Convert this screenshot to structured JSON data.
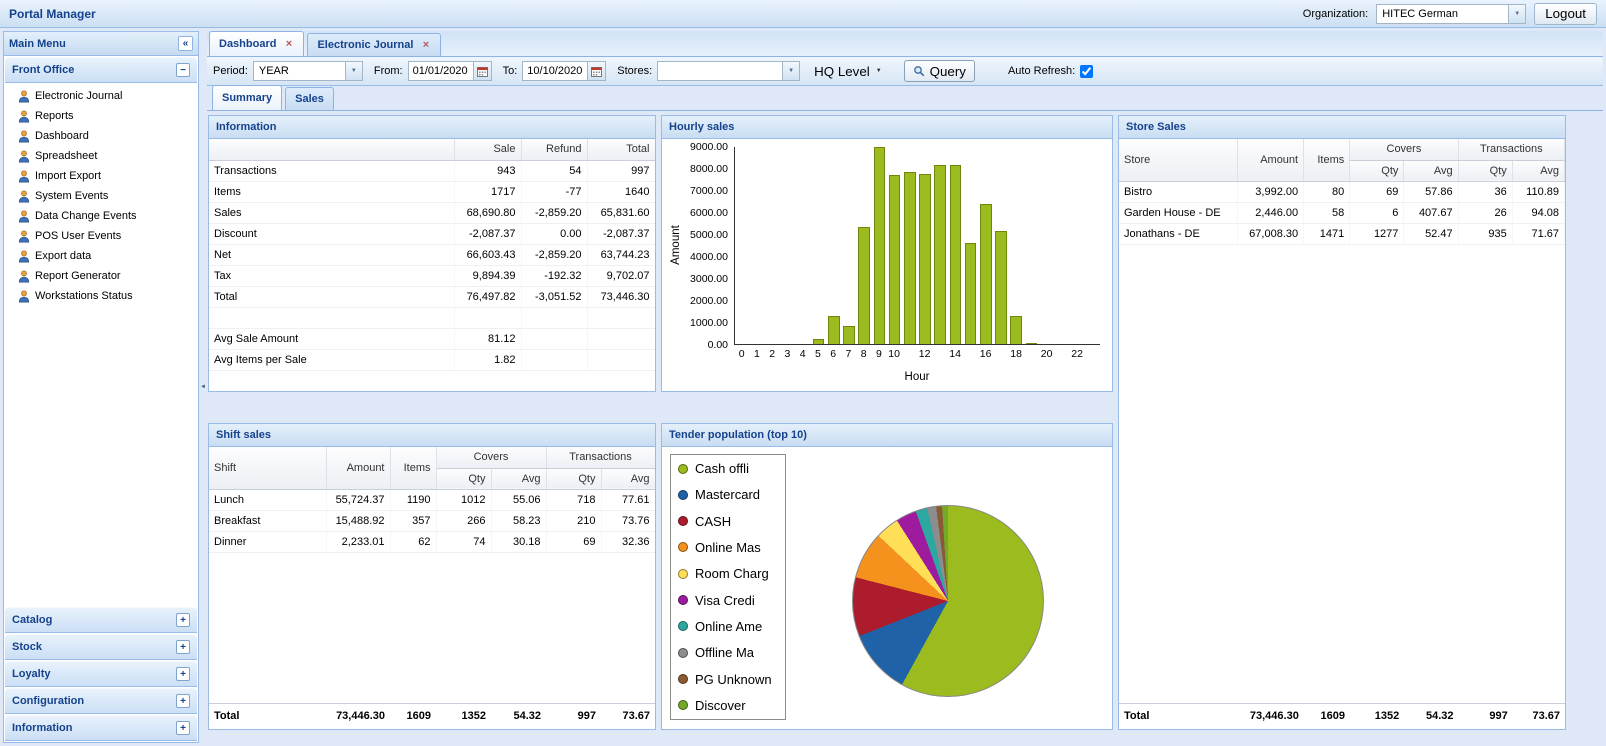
{
  "topbar": {
    "title": "Portal Manager",
    "organization_label": "Organization:",
    "organization_value": "HITEC German",
    "logout_label": "Logout"
  },
  "sidebar": {
    "header": "Main Menu",
    "front_office": {
      "label": "Front Office",
      "items": [
        "Electronic Journal",
        "Reports",
        "Dashboard",
        "Spreadsheet",
        "Import Export",
        "System Events",
        "Data Change Events",
        "POS User Events",
        "Export data",
        "Report Generator",
        "Workstations Status"
      ]
    },
    "collapsed_sections": [
      "Catalog",
      "Stock",
      "Loyalty",
      "Configuration",
      "Information"
    ]
  },
  "tabs": {
    "items": [
      {
        "label": "Dashboard",
        "active": true
      },
      {
        "label": "Electronic Journal",
        "active": false
      }
    ]
  },
  "toolbar": {
    "period_label": "Period:",
    "period_value": "YEAR",
    "from_label": "From:",
    "from_value": "01/01/2020",
    "to_label": "To:",
    "to_value": "10/10/2020",
    "stores_label": "Stores:",
    "stores_value": "",
    "hq_level_label": "HQ Level",
    "query_label": "Query",
    "auto_refresh_label": "Auto Refresh:",
    "auto_refresh_checked": true
  },
  "subtabs": {
    "items": [
      {
        "label": "Summary",
        "active": true
      },
      {
        "label": "Sales",
        "active": false
      }
    ]
  },
  "panels": {
    "information": {
      "title": "Information",
      "grid": {
        "columns": [
          "",
          "Sale",
          "Refund",
          "Total"
        ],
        "rows": [
          [
            "Transactions",
            "943",
            "54",
            "997"
          ],
          [
            "Items",
            "1717",
            "-77",
            "1640"
          ],
          [
            "Sales",
            "68,690.80",
            "-2,859.20",
            "65,831.60"
          ],
          [
            "Discount",
            "-2,087.37",
            "0.00",
            "-2,087.37"
          ],
          [
            "Net",
            "66,603.43",
            "-2,859.20",
            "63,744.23"
          ],
          [
            "Tax",
            "9,894.39",
            "-192.32",
            "9,702.07"
          ],
          [
            "Total",
            "76,497.82",
            "-3,051.52",
            "73,446.30"
          ],
          [
            "",
            "",
            "",
            ""
          ],
          [
            "Avg Sale Amount",
            "81.12",
            "",
            ""
          ],
          [
            "Avg Items per Sale",
            "1.82",
            "",
            ""
          ]
        ]
      }
    },
    "hourly_sales": {
      "title": "Hourly sales"
    },
    "store_sales": {
      "title": "Store Sales",
      "grid": {
        "header_main": [
          {
            "label": "Store",
            "rowspan": 2
          },
          {
            "label": "Amount",
            "rowspan": 2
          },
          {
            "label": "Items",
            "rowspan": 2
          },
          {
            "label": "Covers",
            "colspan": 2
          },
          {
            "label": "Transactions",
            "colspan": 2
          }
        ],
        "header_sub": [
          "Qty",
          "Avg",
          "Qty",
          "Avg"
        ],
        "rows": [
          [
            "Bistro",
            "3,992.00",
            "80",
            "69",
            "57.86",
            "36",
            "110.89"
          ],
          [
            "Garden House - DE",
            "2,446.00",
            "58",
            "6",
            "407.67",
            "26",
            "94.08"
          ],
          [
            "Jonathans - DE",
            "67,008.30",
            "1471",
            "1277",
            "52.47",
            "935",
            "71.67"
          ]
        ],
        "total": [
          "Total",
          "73,446.30",
          "1609",
          "1352",
          "54.32",
          "997",
          "73.67"
        ]
      }
    },
    "shift_sales": {
      "title": "Shift sales",
      "grid": {
        "header_main": [
          {
            "label": "Shift",
            "rowspan": 2
          },
          {
            "label": "Amount",
            "rowspan": 2
          },
          {
            "label": "Items",
            "rowspan": 2
          },
          {
            "label": "Covers",
            "colspan": 2
          },
          {
            "label": "Transactions",
            "colspan": 2
          }
        ],
        "header_sub": [
          "Qty",
          "Avg",
          "Qty",
          "Avg"
        ],
        "rows": [
          [
            "Lunch",
            "55,724.37",
            "1190",
            "1012",
            "55.06",
            "718",
            "77.61"
          ],
          [
            "Breakfast",
            "15,488.92",
            "357",
            "266",
            "58.23",
            "210",
            "73.76"
          ],
          [
            "Dinner",
            "2,233.01",
            "62",
            "74",
            "30.18",
            "69",
            "32.36"
          ]
        ],
        "total": [
          "Total",
          "73,446.30",
          "1609",
          "1352",
          "54.32",
          "997",
          "73.67"
        ]
      }
    },
    "tender_population": {
      "title": "Tender population (top 10)"
    }
  },
  "chart_data": [
    {
      "type": "bar",
      "title": "Hourly sales",
      "xlabel": "Hour",
      "ylabel": "Amount",
      "ylim": [
        0,
        9000
      ],
      "ytick_step": 1000,
      "categories": [
        0,
        1,
        2,
        3,
        4,
        5,
        6,
        7,
        8,
        9,
        10,
        11,
        12,
        13,
        14,
        15,
        16,
        17,
        18,
        19,
        20,
        21,
        22,
        23
      ],
      "values": [
        0,
        0,
        0,
        0,
        0,
        230,
        1300,
        830,
        5350,
        9000,
        7700,
        7850,
        7750,
        8170,
        8170,
        4600,
        6400,
        5150,
        1300,
        60,
        0,
        0,
        0,
        0
      ],
      "x_tick_labels": [
        "0",
        "1",
        "2",
        "3",
        "4",
        "5",
        "6",
        "7",
        "8",
        "9",
        "10",
        "",
        "12",
        "",
        "14",
        "",
        "16",
        "",
        "18",
        "",
        "20",
        "",
        "22",
        ""
      ],
      "bar_color": "#9CBB1F",
      "bar_border": "#6F860E",
      "grid": false,
      "legend_position": "none"
    },
    {
      "type": "pie",
      "title": "Tender population (top 10)",
      "legend_position": "left",
      "slices": [
        {
          "label": "Cash offli",
          "value": 58,
          "color": "#9CBB1F"
        },
        {
          "label": "Mastercard",
          "value": 11,
          "color": "#1F62A8"
        },
        {
          "label": "CASH",
          "value": 10,
          "color": "#AD1C2C"
        },
        {
          "label": "Online Mas",
          "value": 8,
          "color": "#F5921E"
        },
        {
          "label": "Room Charg",
          "value": 4,
          "color": "#FFDE58"
        },
        {
          "label": "Visa Credi",
          "value": 3.5,
          "color": "#9E1B9E"
        },
        {
          "label": "Online Ame",
          "value": 2,
          "color": "#2BA8A0"
        },
        {
          "label": "Offline Ma",
          "value": 1.5,
          "color": "#8D8D8D"
        },
        {
          "label": "PG Unknown",
          "value": 1,
          "color": "#8A5B33"
        },
        {
          "label": "Discover",
          "value": 1,
          "color": "#74A827"
        }
      ]
    }
  ]
}
